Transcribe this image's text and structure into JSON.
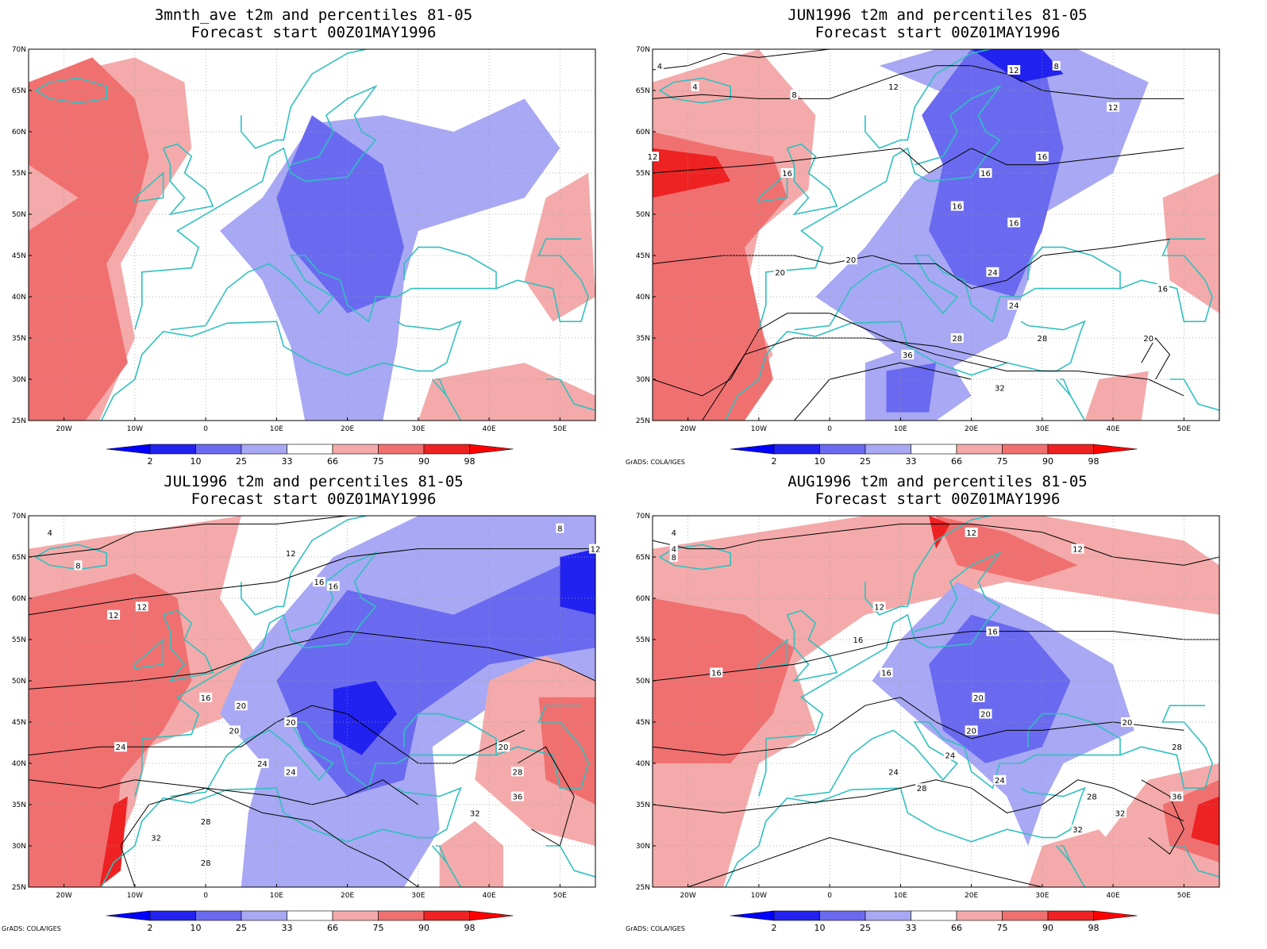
{
  "colors": {
    "blue_dark": "#2222f0",
    "blue_mid": "#6a6af0",
    "blue_light": "#a8a8f4",
    "red_light": "#f4aaaa",
    "red_mid": "#f07070",
    "red_dark": "#ee2222",
    "coast": "#30c0c0",
    "contour": "#000000"
  },
  "axes": {
    "lat_labels": [
      "70N",
      "65N",
      "60N",
      "55N",
      "50N",
      "45N",
      "40N",
      "35N",
      "30N",
      "25N"
    ],
    "lon_labels": [
      "20W",
      "10W",
      "0",
      "10E",
      "20E",
      "30E",
      "40E",
      "50E"
    ]
  },
  "colorbar": {
    "labels": [
      "2",
      "10",
      "25",
      "33",
      "66",
      "75",
      "90",
      "98"
    ]
  },
  "credit": "GrADS: COLA/IGES",
  "panels": [
    {
      "title_line1": "3mnth_ave t2m and percentiles 81-05",
      "title_line2": "Forecast start 00Z01MAY1996",
      "show_credit": false,
      "contour_labels": []
    },
    {
      "title_line1": "JUN1996 t2m and percentiles 81-05",
      "title_line2": "Forecast start 00Z01MAY1996",
      "show_credit": true,
      "contour_labels": [
        "4",
        "4",
        "8",
        "8",
        "12",
        "12",
        "12",
        "12",
        "16",
        "16",
        "16",
        "16",
        "16",
        "20",
        "20",
        "24",
        "24",
        "28",
        "28",
        "32",
        "36",
        "20",
        "16"
      ]
    },
    {
      "title_line1": "JUL1996 t2m and percentiles 81-05",
      "title_line2": "Forecast start 00Z01MAY1996",
      "show_credit": true,
      "contour_labels": [
        "4",
        "8",
        "12",
        "12",
        "12",
        "16",
        "16",
        "16",
        "20",
        "20",
        "20",
        "24",
        "24",
        "24",
        "28",
        "28",
        "32",
        "36",
        "20",
        "28",
        "32",
        "12",
        "8"
      ]
    },
    {
      "title_line1": "AUG1996 t2m and percentiles 81-05",
      "title_line2": "Forecast start 00Z01MAY1996",
      "show_credit": true,
      "contour_labels": [
        "4",
        "4",
        "8",
        "12",
        "12",
        "12",
        "16",
        "16",
        "16",
        "16",
        "20",
        "20",
        "20",
        "24",
        "24",
        "24",
        "28",
        "28",
        "32",
        "32",
        "36",
        "20",
        "28"
      ]
    }
  ]
}
